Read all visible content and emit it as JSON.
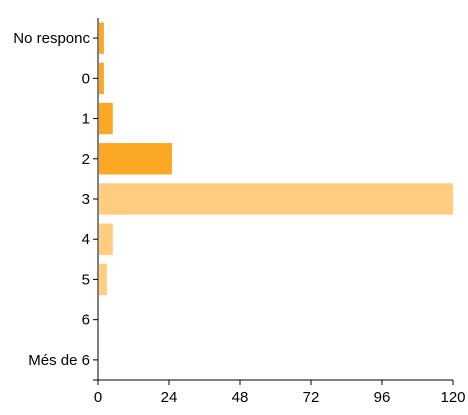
{
  "chart_data": {
    "type": "bar",
    "orientation": "horizontal",
    "categories": [
      "No responc",
      "0",
      "1",
      "2",
      "3",
      "4",
      "5",
      "6",
      "Més de 6"
    ],
    "values": [
      2,
      2,
      5,
      25,
      120,
      5,
      3,
      0,
      0
    ],
    "xlim": [
      0,
      120
    ],
    "xticks": [
      0,
      24,
      48,
      72,
      96,
      120
    ],
    "tick_labels": [
      "0",
      "24",
      "48",
      "72",
      "96",
      "120"
    ],
    "colors": {
      "dark": "#FBA825",
      "light": "#FFCC80",
      "axis": "#000000"
    },
    "bar_color_keys": [
      "dark",
      "dark",
      "dark",
      "dark",
      "light",
      "light",
      "light",
      "light",
      "light"
    ],
    "grid": false,
    "legend": "none"
  }
}
